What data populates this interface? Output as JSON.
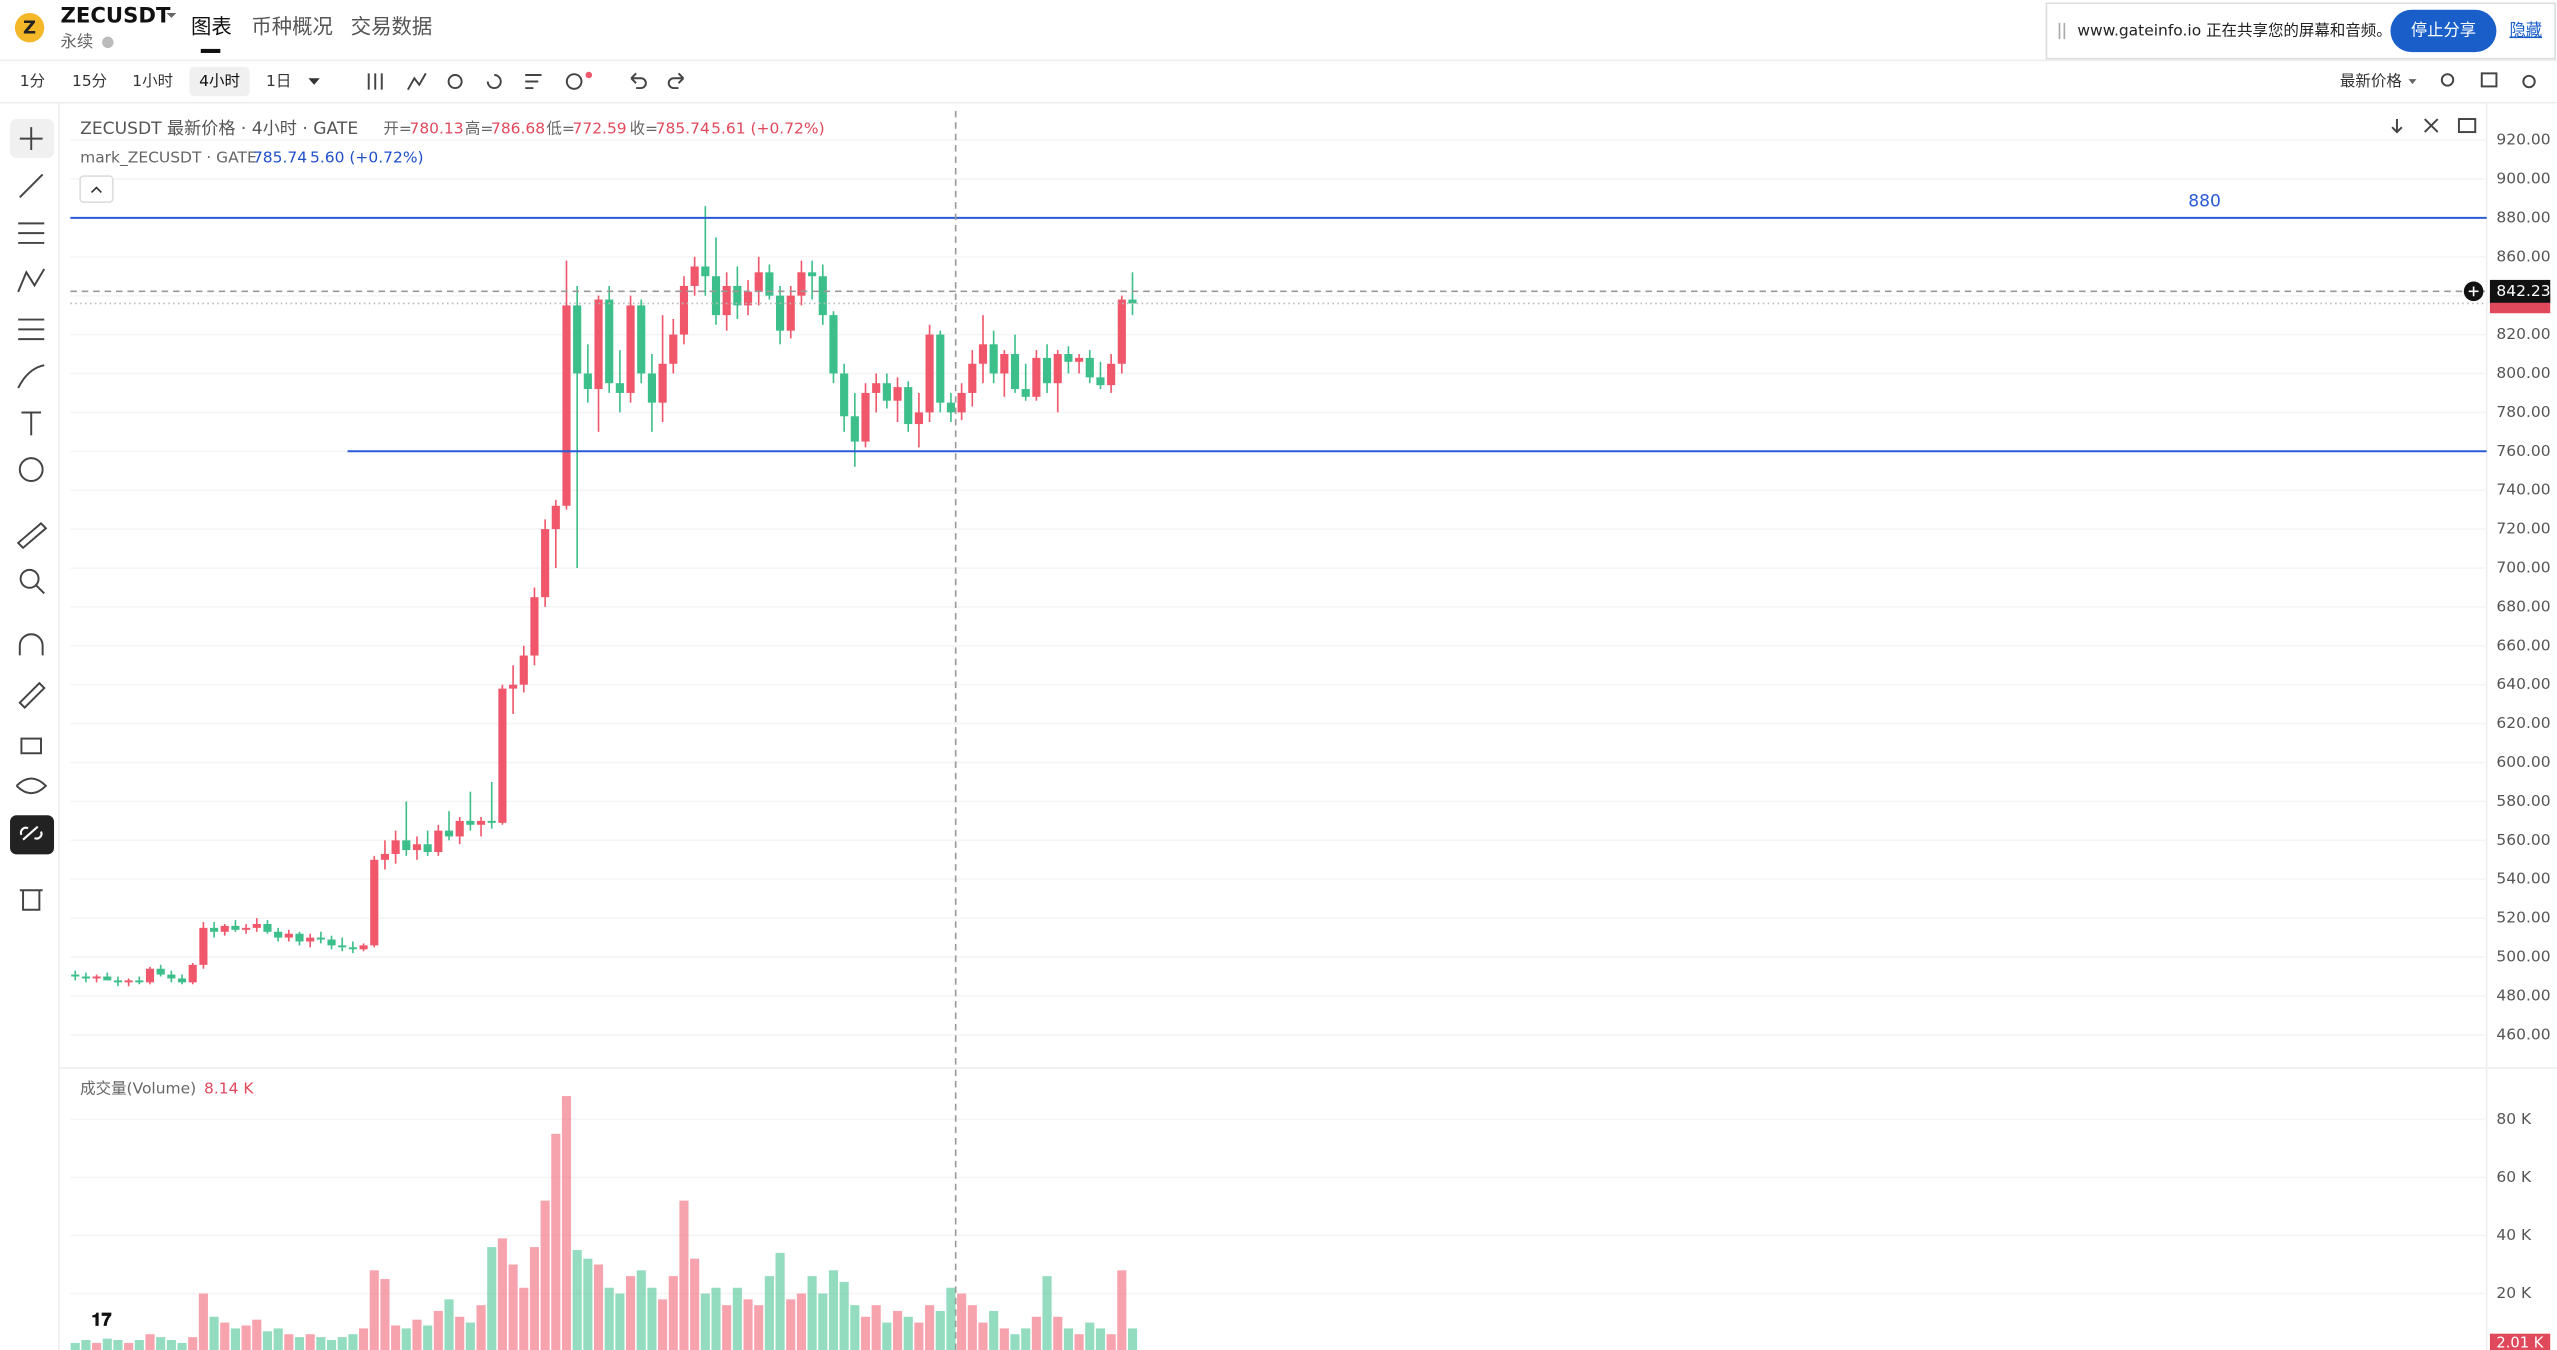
{
  "header": {
    "symbol": "ZECUSDT",
    "subtitle": "永续",
    "tabs": [
      "图表",
      "币种概况",
      "交易数据"
    ]
  },
  "toolbar": {
    "intervals": [
      "1分",
      "15分",
      "1小时",
      "4小时",
      "1日"
    ],
    "price_source": "最新价格"
  },
  "share_banner": {
    "text": "www.gateinfo.io 正在共享您的屏幕和音频。",
    "stop": "停止分享",
    "hide": "隐藏"
  },
  "chart_data": {
    "type": "candlestick",
    "legend": {
      "name": "ZECUSDT 最新价格 · 4小时 · GATE",
      "ohlc_labels": [
        "开=",
        "高=",
        "低=",
        "收="
      ],
      "ohlc": [
        780.13,
        786.68,
        772.59,
        785.74
      ],
      "change": "5.61 (+0.72%)",
      "mark_name": "mark_ZECUSDT · GATE",
      "mark_price": 785.74,
      "mark_change": "5.60 (+0.72%)"
    },
    "up_color": "#f0576b",
    "down_color": "#3dbf8b",
    "grid": true,
    "ylim": [
      443,
      935
    ],
    "yticks": [
      {
        "value": 460,
        "label": "460.00"
      },
      {
        "value": 480,
        "label": "480.00"
      },
      {
        "value": 500,
        "label": "500.00"
      },
      {
        "value": 520,
        "label": "520.00"
      },
      {
        "value": 540,
        "label": "540.00"
      },
      {
        "value": 560,
        "label": "560.00"
      },
      {
        "value": 580,
        "label": "580.00"
      },
      {
        "value": 600,
        "label": "600.00"
      },
      {
        "value": 620,
        "label": "620.00"
      },
      {
        "value": 640,
        "label": "640.00"
      },
      {
        "value": 660,
        "label": "660.00"
      },
      {
        "value": 680,
        "label": "680.00"
      },
      {
        "value": 700,
        "label": "700.00"
      },
      {
        "value": 720,
        "label": "720.00"
      },
      {
        "value": 740,
        "label": "740.00"
      },
      {
        "value": 760,
        "label": "760.00"
      },
      {
        "value": 780,
        "label": "780.00"
      },
      {
        "value": 800,
        "label": "800.00"
      },
      {
        "value": 820,
        "label": "820.00"
      },
      {
        "value": 840,
        "label": "840.00"
      },
      {
        "value": 860,
        "label": "860.00"
      },
      {
        "value": 880,
        "label": "880.00"
      },
      {
        "value": 900,
        "label": "900.00"
      },
      {
        "value": 920,
        "label": "920.00"
      }
    ],
    "hlines": [
      {
        "value": 880,
        "label": "880"
      },
      {
        "value": 760
      }
    ],
    "crosshair_price": 842.23,
    "candles": [
      [
        491,
        493,
        488,
        490
      ],
      [
        490,
        492,
        487,
        489
      ],
      [
        489,
        491,
        487,
        490
      ],
      [
        490,
        492,
        488,
        488
      ],
      [
        488,
        490,
        485,
        487
      ],
      [
        487,
        489,
        485,
        488
      ],
      [
        488,
        490,
        486,
        487
      ],
      [
        487,
        495,
        486,
        494
      ],
      [
        494,
        496,
        490,
        491
      ],
      [
        491,
        493,
        487,
        489
      ],
      [
        489,
        491,
        486,
        487
      ],
      [
        487,
        497,
        486,
        496
      ],
      [
        496,
        518,
        494,
        515
      ],
      [
        515,
        518,
        510,
        513
      ],
      [
        513,
        517,
        511,
        516
      ],
      [
        516,
        519,
        513,
        514
      ],
      [
        514,
        517,
        512,
        515
      ],
      [
        515,
        520,
        513,
        517
      ],
      [
        517,
        519,
        512,
        513
      ],
      [
        513,
        515,
        508,
        510
      ],
      [
        510,
        514,
        508,
        512
      ],
      [
        512,
        513,
        506,
        508
      ],
      [
        508,
        512,
        505,
        510
      ],
      [
        510,
        513,
        507,
        509
      ],
      [
        509,
        511,
        504,
        506
      ],
      [
        506,
        510,
        503,
        505
      ],
      [
        505,
        508,
        502,
        504
      ],
      [
        504,
        507,
        503,
        506
      ],
      [
        506,
        552,
        505,
        550
      ],
      [
        550,
        560,
        545,
        553
      ],
      [
        553,
        565,
        548,
        560
      ],
      [
        560,
        580,
        552,
        555
      ],
      [
        555,
        562,
        550,
        558
      ],
      [
        558,
        565,
        552,
        554
      ],
      [
        554,
        568,
        552,
        565
      ],
      [
        565,
        575,
        560,
        562
      ],
      [
        562,
        572,
        558,
        570
      ],
      [
        570,
        585,
        565,
        568
      ],
      [
        568,
        572,
        562,
        570
      ],
      [
        570,
        590,
        566,
        569
      ],
      [
        569,
        640,
        568,
        638
      ],
      [
        638,
        650,
        625,
        640
      ],
      [
        640,
        660,
        636,
        655
      ],
      [
        655,
        690,
        650,
        685
      ],
      [
        685,
        725,
        680,
        720
      ],
      [
        720,
        735,
        700,
        732
      ],
      [
        732,
        858,
        730,
        835
      ],
      [
        835,
        845,
        700,
        800
      ],
      [
        800,
        815,
        785,
        792
      ],
      [
        792,
        840,
        770,
        838
      ],
      [
        838,
        845,
        790,
        795
      ],
      [
        795,
        812,
        780,
        790
      ],
      [
        790,
        840,
        785,
        835
      ],
      [
        835,
        838,
        795,
        800
      ],
      [
        800,
        810,
        770,
        785
      ],
      [
        785,
        830,
        775,
        805
      ],
      [
        805,
        828,
        800,
        820
      ],
      [
        820,
        850,
        815,
        845
      ],
      [
        845,
        860,
        840,
        855
      ],
      [
        855,
        886,
        840,
        850
      ],
      [
        850,
        870,
        825,
        830
      ],
      [
        830,
        852,
        822,
        845
      ],
      [
        845,
        855,
        828,
        835
      ],
      [
        835,
        848,
        830,
        842
      ],
      [
        842,
        860,
        835,
        852
      ],
      [
        852,
        856,
        838,
        840
      ],
      [
        840,
        845,
        815,
        822
      ],
      [
        822,
        845,
        818,
        840
      ],
      [
        840,
        858,
        835,
        852
      ],
      [
        852,
        858,
        838,
        850
      ],
      [
        850,
        856,
        825,
        830
      ],
      [
        830,
        832,
        795,
        800
      ],
      [
        800,
        805,
        770,
        778
      ],
      [
        778,
        790,
        752,
        765
      ],
      [
        765,
        795,
        762,
        790
      ],
      [
        790,
        800,
        780,
        795
      ],
      [
        795,
        800,
        782,
        786
      ],
      [
        786,
        798,
        775,
        793
      ],
      [
        793,
        796,
        770,
        774
      ],
      [
        774,
        790,
        762,
        780
      ],
      [
        780,
        825,
        775,
        820
      ],
      [
        820,
        822,
        780,
        785
      ],
      [
        785,
        790,
        775,
        780
      ],
      [
        780,
        795,
        776,
        790
      ],
      [
        790,
        812,
        783,
        805
      ],
      [
        805,
        830,
        795,
        815
      ],
      [
        815,
        822,
        795,
        800
      ],
      [
        800,
        812,
        788,
        810
      ],
      [
        810,
        820,
        790,
        792
      ],
      [
        792,
        805,
        786,
        788
      ],
      [
        788,
        812,
        786,
        808
      ],
      [
        808,
        815,
        790,
        795
      ],
      [
        795,
        812,
        780,
        810
      ],
      [
        810,
        814,
        800,
        806
      ],
      [
        806,
        810,
        800,
        808
      ],
      [
        808,
        812,
        795,
        798
      ],
      [
        798,
        806,
        792,
        794
      ],
      [
        794,
        810,
        790,
        805
      ],
      [
        805,
        840,
        800,
        838
      ],
      [
        838,
        852,
        830,
        836
      ]
    ],
    "volume": {
      "title": "成交量(Volume)",
      "last": "8.14 K",
      "last_bar": "2.01 K",
      "ylim": [
        0,
        96
      ],
      "yticks": [
        {
          "value": 20,
          "label": "20 K"
        },
        {
          "value": 40,
          "label": "40 K"
        },
        {
          "value": 60,
          "label": "60 K"
        },
        {
          "value": 80,
          "label": "80 K"
        }
      ],
      "values": [
        3,
        4,
        3,
        5,
        4,
        3,
        4,
        6,
        5,
        4,
        3,
        5,
        20,
        12,
        10,
        8,
        9,
        11,
        7,
        8,
        6,
        5,
        6,
        5,
        4,
        5,
        6,
        8,
        28,
        25,
        9,
        8,
        11,
        9,
        14,
        18,
        12,
        10,
        16,
        36,
        39,
        30,
        22,
        36,
        52,
        75,
        88,
        35,
        32,
        30,
        22,
        20,
        26,
        28,
        22,
        18,
        26,
        52,
        32,
        20,
        22,
        16,
        22,
        18,
        16,
        26,
        34,
        18,
        20,
        26,
        20,
        28,
        24,
        16,
        12,
        16,
        10,
        14,
        12,
        10,
        16,
        14,
        22,
        20,
        16,
        10,
        14,
        8,
        6,
        8,
        12,
        26,
        12,
        8,
        6,
        10,
        8,
        6,
        28,
        8
      ]
    }
  }
}
